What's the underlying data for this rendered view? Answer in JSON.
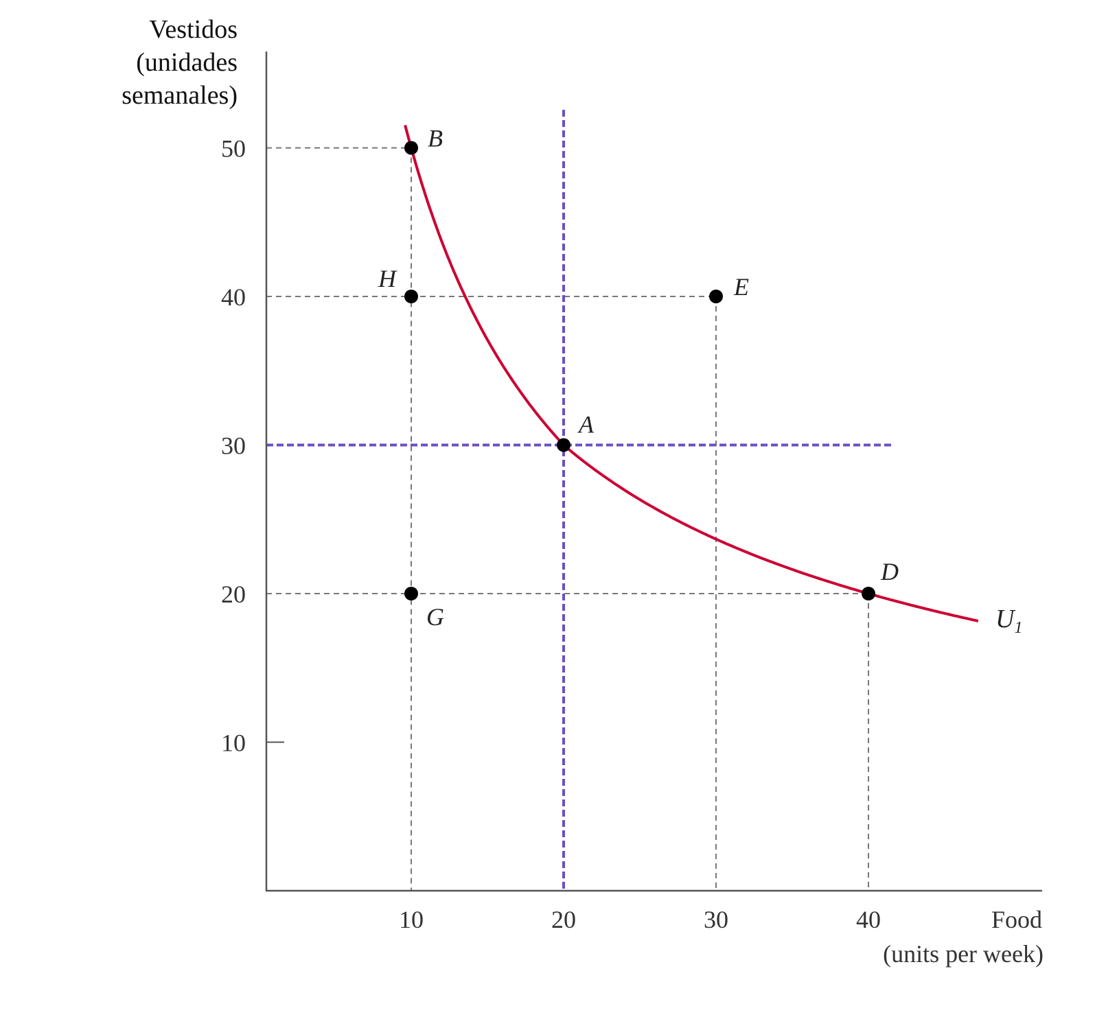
{
  "chart_data": {
    "type": "scatter",
    "xlabel": [
      "Food",
      "(units per week)"
    ],
    "ylabel": [
      "Vestidos",
      "(unidades",
      "semanales)"
    ],
    "xticks": [
      10,
      20,
      30,
      40
    ],
    "yticks": [
      10,
      20,
      30,
      40,
      50
    ],
    "xlim": [
      0,
      50
    ],
    "ylim": [
      0,
      55
    ],
    "grid": false,
    "points": [
      {
        "label": "B",
        "x": 10,
        "y": 50
      },
      {
        "label": "H",
        "x": 10,
        "y": 40
      },
      {
        "label": "E",
        "x": 30,
        "y": 40
      },
      {
        "label": "A",
        "x": 20,
        "y": 30
      },
      {
        "label": "G",
        "x": 10,
        "y": 20
      },
      {
        "label": "D",
        "x": 40,
        "y": 20
      }
    ],
    "curve": {
      "name": "U",
      "subscript": "1",
      "color": "#cc0033",
      "x_range": [
        9.6,
        47.2
      ],
      "passes_through": [
        "B",
        "A",
        "D"
      ]
    },
    "reference_lines": {
      "color": "#6a4fc4",
      "x": 20,
      "y": 30
    },
    "guide_color": "#777777",
    "point_color": "#000000"
  }
}
